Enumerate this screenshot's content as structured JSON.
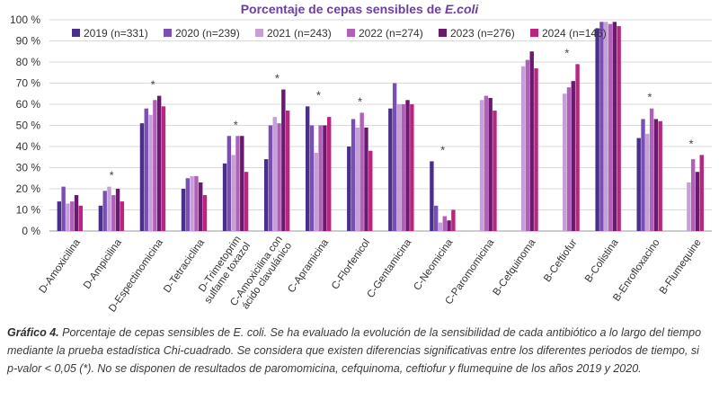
{
  "chart_data": {
    "type": "bar",
    "title": "Porcentaje  de cepas sensibles de ",
    "title_italic": "E.coli",
    "title_color": "#6b3fa0",
    "ylim": [
      0,
      100
    ],
    "yticks": [
      "0 %",
      "10 %",
      "20 %",
      "30 %",
      "40 %",
      "50 %",
      "60 %",
      "70 %",
      "80 %",
      "90 %",
      "100 %"
    ],
    "grid": true,
    "legend_position": "top-left",
    "categories": [
      "D-Amoxicilina",
      "D-Ampicilina",
      "D-Espectinomicina",
      "D-Tetraciclina",
      "D-Trimetoprim sulfame toxazol",
      "C-Amoxicilina con ácido clavulánico",
      "C-Apramicina",
      "C-Florfenicol",
      "C-Gentamicina",
      "C-Neomicina",
      "C-Paromomicina",
      "B-Cefquinoma",
      "B-Ceftiofur",
      "B-Colistina",
      "B-Enrofloxacino",
      "B-Flumequine"
    ],
    "category_label_lines": [
      [
        "D-Amoxicilina"
      ],
      [
        "D-Ampicilina"
      ],
      [
        "D-Espectinomicina"
      ],
      [
        "D-Tetraciclina"
      ],
      [
        "D-Trimetoprim",
        "sulfame toxazol"
      ],
      [
        "C-Amoxicilina con",
        "ácido clavulánico"
      ],
      [
        "C-Apramicina"
      ],
      [
        "C-Florfenicol"
      ],
      [
        "C-Gentamicina"
      ],
      [
        "C-Neomicina"
      ],
      [
        "C-Paromomicina"
      ],
      [
        "B-Cefquinoma"
      ],
      [
        "B-Ceftiofur"
      ],
      [
        "B-Colistina"
      ],
      [
        "B-Enrofloxacino"
      ],
      [
        "B-Flumequine"
      ]
    ],
    "significant_marker": "*",
    "significant": [
      false,
      true,
      true,
      false,
      true,
      true,
      true,
      true,
      false,
      true,
      false,
      false,
      true,
      false,
      true,
      true
    ],
    "series": [
      {
        "name": "2019 (n=331)",
        "color": "#4a2e8c",
        "values": [
          14,
          12,
          51,
          20,
          32,
          34,
          59,
          40,
          58,
          33,
          null,
          null,
          null,
          96,
          44,
          null
        ]
      },
      {
        "name": "2020 (n=239)",
        "color": "#7a4fb5",
        "values": [
          21,
          19,
          58,
          25,
          45,
          50,
          50,
          53,
          70,
          12,
          null,
          null,
          null,
          99,
          53,
          null
        ]
      },
      {
        "name": "2021 (n=243)",
        "color": "#c4a0d6",
        "values": [
          13,
          21,
          55,
          26,
          36,
          54,
          37,
          49,
          60,
          4,
          62,
          78,
          65,
          99,
          46,
          23
        ]
      },
      {
        "name": "2022 (n=274)",
        "color": "#b060b8",
        "values": [
          14,
          17,
          62,
          26,
          45,
          51,
          50,
          56,
          60,
          7,
          64,
          81,
          68,
          98,
          58,
          34
        ]
      },
      {
        "name": "2023 (n=276)",
        "color": "#6a1a6e",
        "values": [
          17,
          20,
          64,
          23,
          45,
          67,
          50,
          49,
          62,
          5,
          63,
          85,
          71,
          99,
          53,
          28
        ]
      },
      {
        "name": "2024 (n=146)",
        "color": "#b8267f",
        "values": [
          12,
          14,
          59,
          17,
          28,
          57,
          54,
          38,
          60,
          10,
          57,
          77,
          79,
          97,
          52,
          36
        ]
      }
    ]
  },
  "caption": {
    "label": "Gráfico 4.",
    "text_before": " Porcentaje de cepas sensibles de ",
    "organism": "E. coli",
    "text_after": ". Se ha evaluado la evolución de la sensibilidad de cada antibiótico a lo largo del tiempo mediante la prueba estadística Chi-cuadrado. Se considera que existen diferencias significativas entre los diferentes periodos de tiempo, si p-valor < 0,05 (*). No se disponen de resultados de paromomicina, cefquinoma, ceftiofur y flumequine de los años 2019 y 2020."
  }
}
